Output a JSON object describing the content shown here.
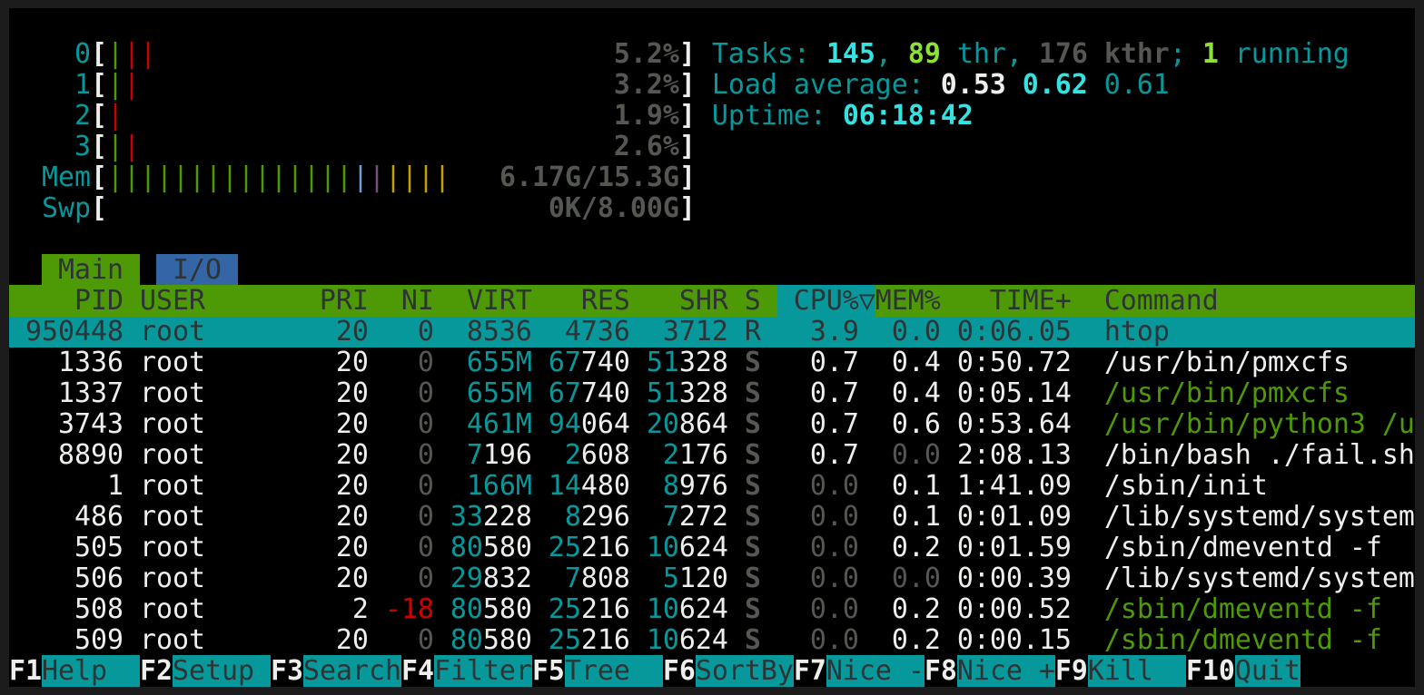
{
  "colors": {
    "cyan": "#06989a",
    "bright_cyan": "#34e2e2",
    "green": "#4e9a06",
    "bright_green": "#8ae234",
    "red": "#cc0000",
    "dim": "#555753",
    "blue_tab": "#3465a4"
  },
  "meters": [
    {
      "label": "0",
      "bars": [
        "green",
        "red",
        "red"
      ],
      "value": "5.2%"
    },
    {
      "label": "1",
      "bars": [
        "green",
        "red"
      ],
      "value": "3.2%"
    },
    {
      "label": "2",
      "bars": [
        "red"
      ],
      "value": "1.9%"
    },
    {
      "label": "3",
      "bars": [
        "green",
        "red"
      ],
      "value": "2.6%"
    },
    {
      "label": "Mem",
      "bars": [
        "green",
        "green",
        "green",
        "green",
        "green",
        "green",
        "green",
        "green",
        "green",
        "green",
        "green",
        "green",
        "green",
        "green",
        "green",
        "blue",
        "magenta",
        "yellow",
        "yellow",
        "yellow",
        "yellow"
      ],
      "value": "6.17G/15.3G"
    },
    {
      "label": "Swp",
      "bars": [],
      "value": "0K/8.00G"
    }
  ],
  "summary": {
    "tasks_label": "Tasks: ",
    "tasks": "145",
    "thr": "89",
    "thr_label": " thr, ",
    "kthr": "176",
    "kthr_label": " kthr",
    "running": "1",
    "running_label": " running",
    "load_label": "Load average: ",
    "load1": "0.53",
    "load5": "0.62",
    "load15": "0.61",
    "uptime_label": "Uptime: ",
    "uptime": "06:18:42"
  },
  "tabs": [
    {
      "label": "Main",
      "active": true
    },
    {
      "label": "I/O",
      "active": false
    }
  ],
  "columns": {
    "pid": "PID",
    "user": "USER",
    "pri": "PRI",
    "ni": "NI",
    "virt": "VIRT",
    "res": "RES",
    "shr": "SHR",
    "s": "S",
    "cpu": "CPU%",
    "sort_indicator": "▽",
    "mem": "MEM%",
    "time": "TIME+",
    "command": "Command"
  },
  "processes": [
    {
      "pid": "950448",
      "user": "root",
      "pri": "20",
      "ni": "0",
      "virt": "8536",
      "res": "4736",
      "shr": "3712",
      "s": "R",
      "cpu": "3.9",
      "mem": "0.0",
      "time": "0:06.05",
      "command": "htop",
      "thread": false,
      "selected": true
    },
    {
      "pid": "1336",
      "user": "root",
      "pri": "20",
      "ni": "0",
      "virt": "655M",
      "res": "67740",
      "shr": "51328",
      "s": "S",
      "cpu": "0.7",
      "mem": "0.4",
      "time": "0:50.72",
      "command": "/usr/bin/pmxcfs",
      "thread": false
    },
    {
      "pid": "1337",
      "user": "root",
      "pri": "20",
      "ni": "0",
      "virt": "655M",
      "res": "67740",
      "shr": "51328",
      "s": "S",
      "cpu": "0.7",
      "mem": "0.4",
      "time": "0:05.14",
      "command": "/usr/bin/pmxcfs",
      "thread": true
    },
    {
      "pid": "3743",
      "user": "root",
      "pri": "20",
      "ni": "0",
      "virt": "461M",
      "res": "94064",
      "shr": "20864",
      "s": "S",
      "cpu": "0.7",
      "mem": "0.6",
      "time": "0:53.64",
      "command": "/usr/bin/python3 /u",
      "thread": true
    },
    {
      "pid": "8890",
      "user": "root",
      "pri": "20",
      "ni": "0",
      "virt": "7196",
      "res": "2608",
      "shr": "2176",
      "s": "S",
      "cpu": "0.7",
      "mem": "0.0",
      "time": "2:08.13",
      "command": "/bin/bash ./fail.sh",
      "thread": false
    },
    {
      "pid": "1",
      "user": "root",
      "pri": "20",
      "ni": "0",
      "virt": "166M",
      "res": "14480",
      "shr": "8976",
      "s": "S",
      "cpu": "0.0",
      "mem": "0.1",
      "time": "1:41.09",
      "command": "/sbin/init",
      "thread": false
    },
    {
      "pid": "486",
      "user": "root",
      "pri": "20",
      "ni": "0",
      "virt": "33228",
      "res": "8296",
      "shr": "7272",
      "s": "S",
      "cpu": "0.0",
      "mem": "0.1",
      "time": "0:01.09",
      "command": "/lib/systemd/system",
      "thread": false
    },
    {
      "pid": "505",
      "user": "root",
      "pri": "20",
      "ni": "0",
      "virt": "80580",
      "res": "25216",
      "shr": "10624",
      "s": "S",
      "cpu": "0.0",
      "mem": "0.2",
      "time": "0:01.59",
      "command": "/sbin/dmeventd -f",
      "thread": false
    },
    {
      "pid": "506",
      "user": "root",
      "pri": "20",
      "ni": "0",
      "virt": "29832",
      "res": "7808",
      "shr": "5120",
      "s": "S",
      "cpu": "0.0",
      "mem": "0.0",
      "time": "0:00.39",
      "command": "/lib/systemd/system",
      "thread": false
    },
    {
      "pid": "508",
      "user": "root",
      "pri": "2",
      "ni": "-18",
      "virt": "80580",
      "res": "25216",
      "shr": "10624",
      "s": "S",
      "cpu": "0.0",
      "mem": "0.2",
      "time": "0:00.52",
      "command": "/sbin/dmeventd -f",
      "thread": true
    },
    {
      "pid": "509",
      "user": "root",
      "pri": "20",
      "ni": "0",
      "virt": "80580",
      "res": "25216",
      "shr": "10624",
      "s": "S",
      "cpu": "0.0",
      "mem": "0.2",
      "time": "0:00.15",
      "command": "/sbin/dmeventd -f",
      "thread": true
    }
  ],
  "function_keys": [
    {
      "key": "F1",
      "label": "Help"
    },
    {
      "key": "F2",
      "label": "Setup"
    },
    {
      "key": "F3",
      "label": "Search"
    },
    {
      "key": "F4",
      "label": "Filter"
    },
    {
      "key": "F5",
      "label": "Tree"
    },
    {
      "key": "F6",
      "label": "SortBy"
    },
    {
      "key": "F7",
      "label": "Nice -"
    },
    {
      "key": "F8",
      "label": "Nice +"
    },
    {
      "key": "F9",
      "label": "Kill"
    },
    {
      "key": "F10",
      "label": "Quit"
    }
  ]
}
